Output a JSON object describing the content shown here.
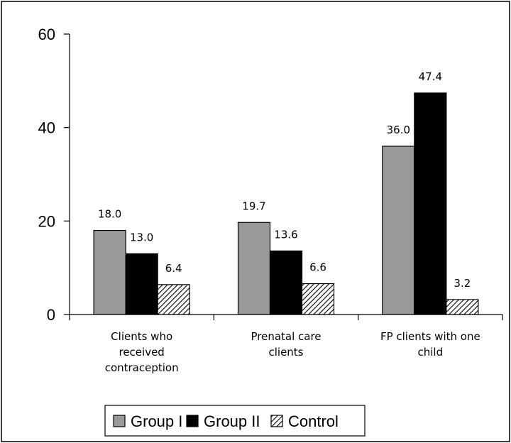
{
  "chart_data": {
    "type": "bar",
    "title": "",
    "xlabel": "",
    "ylabel": "",
    "ylim": [
      0,
      60
    ],
    "yticks": [
      "0",
      "20",
      "40",
      "60"
    ],
    "grid": false,
    "legend_position": "bottom",
    "categories": [
      [
        "Clients who",
        "received",
        "contraception"
      ],
      [
        "Prenatal care",
        "clients"
      ],
      [
        "FP clients with one",
        "child"
      ]
    ],
    "series": [
      {
        "name": "Group I",
        "values": [
          18.0,
          19.7,
          36.0
        ],
        "labels": [
          "18.0",
          "19.7",
          "36.0"
        ],
        "color": "#999999",
        "pattern": "solid"
      },
      {
        "name": "Group II",
        "values": [
          13.0,
          13.6,
          47.4
        ],
        "labels": [
          "13.0",
          "13.6",
          "47.4"
        ],
        "color": "#000000",
        "pattern": "solid"
      },
      {
        "name": "Control",
        "values": [
          6.4,
          6.6,
          3.2
        ],
        "labels": [
          "6.4",
          "6.6",
          "3.2"
        ],
        "color": "#ffffff",
        "pattern": "diagonal-hatch"
      }
    ]
  }
}
